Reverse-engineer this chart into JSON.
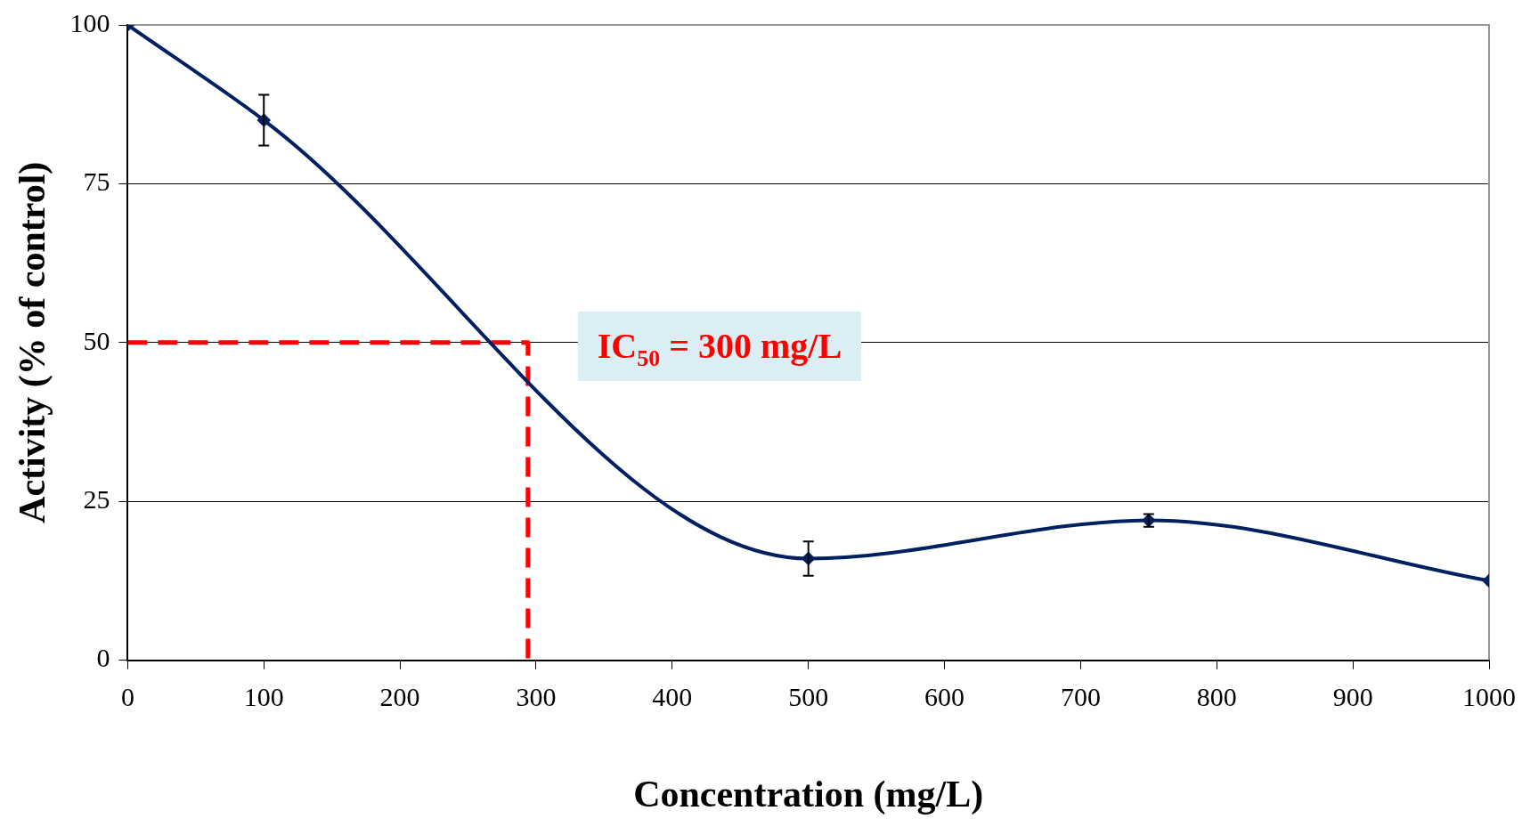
{
  "chart_data": {
    "type": "line",
    "xlabel": "Concentration (mg/L)",
    "ylabel": "Activity (% of control)",
    "xlim": [
      0,
      1000
    ],
    "xticks": [
      0,
      100,
      200,
      300,
      400,
      500,
      600,
      700,
      800,
      900,
      1000
    ],
    "ylim": [
      0,
      100
    ],
    "yticks": [
      0,
      25,
      50,
      75,
      100
    ],
    "grid": "y",
    "legend": false,
    "series": [
      {
        "color": "#002060",
        "x": [
          0,
          100,
          500,
          750,
          1000
        ],
        "values": [
          100,
          85,
          16,
          22,
          12.5
        ],
        "errors": [
          null,
          4,
          2.7,
          1,
          null
        ],
        "marker": "diamond",
        "line_style": "solid"
      },
      {
        "type": "line",
        "color": "#ff0000",
        "x": [
          0,
          294,
          294
        ],
        "values": [
          50,
          50,
          0
        ],
        "marker": "none",
        "line_style": "dashed"
      }
    ],
    "annotations": [
      "IC$_{50}$ = 300 mg/L"
    ]
  }
}
